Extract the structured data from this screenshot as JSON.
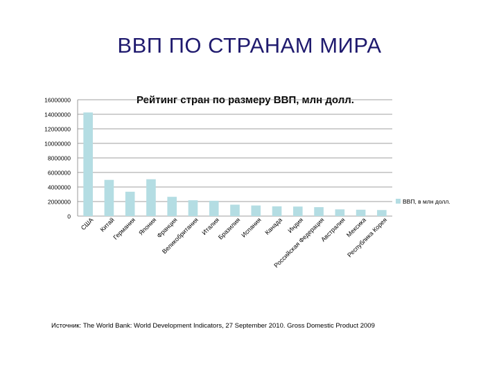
{
  "slide": {
    "title": "ВВП ПО СТРАНАМ МИРА",
    "source": "Источник: The World Bank: World Development Indicators, 27 September 2010. Gross Domestic Product 2009"
  },
  "chart_data": {
    "type": "bar",
    "title": "Рейтинг стран по размеру ВВП,  млн долл.",
    "categories": [
      "США",
      "Китай",
      "Германия",
      "Япония",
      "Франция",
      "Великобритания",
      "Италия",
      "Бразилия",
      "Испания",
      "Канада",
      "Индия",
      "Российская Федерация",
      "Австралия",
      "Мексика",
      "Республика Корея"
    ],
    "series": [
      {
        "name": "ВВП, в млн долл.",
        "values": [
          14250000,
          4980000,
          3350000,
          5070000,
          2650000,
          2180000,
          2110000,
          1570000,
          1460000,
          1340000,
          1310000,
          1230000,
          925000,
          875000,
          833000
        ]
      }
    ],
    "ylim": [
      0,
      16000000
    ],
    "yticks": [
      "0",
      "2000000",
      "4000000",
      "6000000",
      "8000000",
      "10000000",
      "12000000",
      "14000000",
      "16000000"
    ],
    "xlabel": "",
    "ylabel": "",
    "grid": true,
    "legend_position": "right",
    "bar_color": "#b4dde3",
    "grid_color": "#7f7f7f"
  }
}
